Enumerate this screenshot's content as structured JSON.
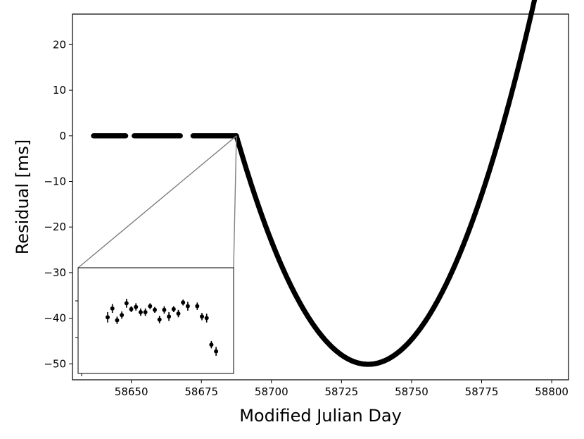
{
  "chart_data": {
    "type": "scatter",
    "xlabel": "Modified Julian Day",
    "ylabel": "Residual [ms]",
    "xlim": [
      58629,
      58806
    ],
    "ylim": [
      -53.5,
      26.7
    ],
    "x_ticks": [
      58650,
      58675,
      58700,
      58725,
      58750,
      58775,
      58800
    ],
    "x_tick_labels": [
      "58650",
      "58675",
      "58700",
      "58725",
      "58750",
      "58775",
      "58800"
    ],
    "y_ticks": [
      20,
      10,
      0,
      -10,
      -20,
      -30,
      -40,
      -50
    ],
    "y_tick_labels": [
      "20",
      "10",
      "0",
      "−10",
      "−20",
      "−30",
      "−40",
      "−50"
    ],
    "grid": false,
    "legend": "none",
    "marker_color": "#000000",
    "residual_model": {
      "flat_segments": [
        [
          58636.5,
          58648.0
        ],
        [
          58651.0,
          58667.5
        ],
        [
          58672.0,
          58687.5
        ]
      ],
      "flat_value": 0,
      "parabola": {
        "x_start": 58687.5,
        "x_end": 58801.0,
        "vertex_x": 58734.5,
        "vertex_y": -50.1
      }
    },
    "inset": {
      "note": "zoom of the pre-glitch flat residuals near y = 0 (unlabeled axes)",
      "points": [
        {
          "x": 1,
          "y": -0.6,
          "err": 0.7
        },
        {
          "x": 2,
          "y": 0.6,
          "err": 0.6
        },
        {
          "x": 3,
          "y": -1.0,
          "err": 0.5
        },
        {
          "x": 4,
          "y": -0.3,
          "err": 0.5
        },
        {
          "x": 5,
          "y": 1.3,
          "err": 0.6
        },
        {
          "x": 6,
          "y": 0.5,
          "err": 0.4
        },
        {
          "x": 7,
          "y": 0.8,
          "err": 0.5
        },
        {
          "x": 8,
          "y": 0.1,
          "err": 0.5
        },
        {
          "x": 9,
          "y": 0.1,
          "err": 0.5
        },
        {
          "x": 10,
          "y": 0.9,
          "err": 0.4
        },
        {
          "x": 11,
          "y": 0.4,
          "err": 0.4
        },
        {
          "x": 12,
          "y": -0.9,
          "err": 0.5
        },
        {
          "x": 13,
          "y": 0.4,
          "err": 0.5
        },
        {
          "x": 14,
          "y": -0.5,
          "err": 0.6
        },
        {
          "x": 15,
          "y": 0.5,
          "err": 0.4
        },
        {
          "x": 16,
          "y": -0.1,
          "err": 0.5
        },
        {
          "x": 17,
          "y": 1.4,
          "err": 0.4
        },
        {
          "x": 18,
          "y": 0.9,
          "err": 0.6
        },
        {
          "x": 20,
          "y": 0.9,
          "err": 0.5
        },
        {
          "x": 21,
          "y": -0.5,
          "err": 0.5
        },
        {
          "x": 22,
          "y": -0.7,
          "err": 0.6
        },
        {
          "x": 23,
          "y": -4.3,
          "err": 0.5
        },
        {
          "x": 24,
          "y": -5.2,
          "err": 0.6
        }
      ]
    }
  }
}
